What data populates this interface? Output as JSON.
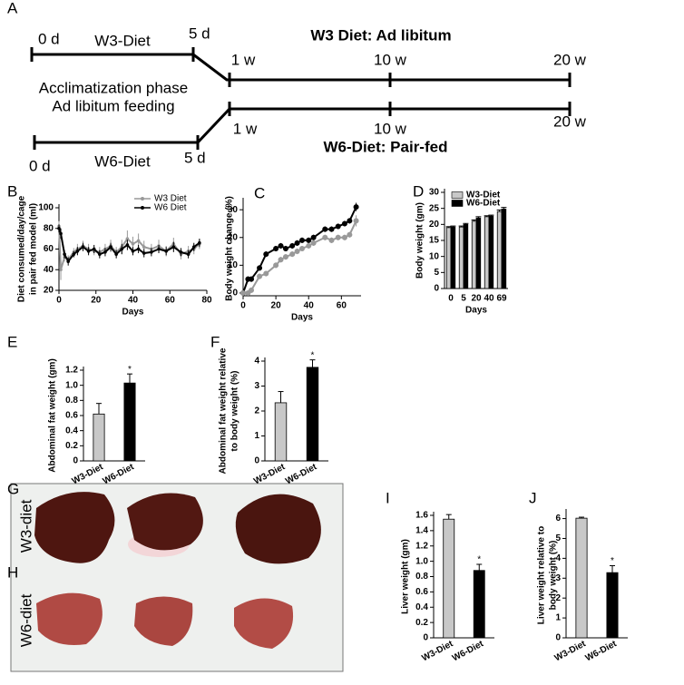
{
  "timeline": {
    "label": "A",
    "w3_start": "0 d",
    "w3_diet": "W3-Diet",
    "w3_end": "5 d",
    "w3_title": "W3 Diet: Ad libitum",
    "w3_marks": [
      "1 w",
      "10 w",
      "20 w"
    ],
    "phase": [
      "Acclimatization phase",
      "Ad libitum feeding"
    ],
    "w6_marks": [
      "1 w",
      "10 w",
      "20 w"
    ],
    "w6_start": "0 d",
    "w6_diet": "W6-Diet",
    "w6_end": "5 d",
    "w6_title": "W6-Diet: Pair-fed"
  },
  "photo": {
    "labels": [
      "G",
      "H"
    ],
    "rows": [
      "W3-diet",
      "W6-diet"
    ]
  },
  "chart_data": [
    {
      "type": "line",
      "panel": "B",
      "xlabel": "Days",
      "ylabel": [
        "Diet consumed/day/cage",
        "in pair fed model (ml)"
      ],
      "x": [
        0,
        1,
        3,
        5,
        8,
        10,
        13,
        16,
        19,
        22,
        25,
        28,
        31,
        34,
        37,
        40,
        43,
        46,
        50,
        54,
        58,
        62,
        66,
        70,
        73,
        76
      ],
      "xlim": [
        0,
        80
      ],
      "xticks": [
        0,
        20,
        40,
        60,
        80
      ],
      "ylim": [
        20,
        100
      ],
      "yticks": [
        20,
        40,
        60,
        80,
        100
      ],
      "legend": "upper right",
      "series": [
        {
          "name": "W3 Diet",
          "color": "#999999",
          "values": [
            82,
            40,
            52,
            50,
            57,
            60,
            63,
            60,
            58,
            57,
            60,
            63,
            57,
            62,
            70,
            65,
            68,
            62,
            60,
            63,
            58,
            65,
            55,
            58,
            60,
            65
          ],
          "errors": [
            5,
            10,
            4,
            4,
            4,
            5,
            5,
            5,
            4,
            5,
            5,
            6,
            5,
            7,
            8,
            7,
            7,
            6,
            5,
            6,
            5,
            6,
            5,
            5,
            5,
            5
          ]
        },
        {
          "name": "W6 Diet",
          "color": "#000000",
          "values": [
            80,
            75,
            55,
            48,
            55,
            58,
            62,
            58,
            60,
            55,
            57,
            62,
            55,
            60,
            64,
            58,
            60,
            56,
            57,
            60,
            58,
            62,
            57,
            55,
            62,
            66
          ],
          "errors": [
            4,
            5,
            4,
            4,
            3,
            4,
            4,
            4,
            4,
            4,
            4,
            4,
            4,
            5,
            5,
            4,
            4,
            4,
            4,
            4,
            4,
            5,
            4,
            4,
            4,
            4
          ]
        }
      ]
    },
    {
      "type": "line",
      "panel": "C",
      "xlabel": "Days",
      "ylabel": "Body weight change (%)",
      "x": [
        0,
        3,
        5,
        10,
        14,
        20,
        23,
        26,
        30,
        33,
        36,
        40,
        43,
        50,
        54,
        58,
        62,
        65,
        69
      ],
      "xlim": [
        0,
        72
      ],
      "xticks": [
        0,
        20,
        40,
        60
      ],
      "ylim": [
        -1,
        33
      ],
      "yticks": [
        0,
        10,
        20,
        30
      ],
      "series": [
        {
          "color": "#000000",
          "values": [
            0,
            5,
            5,
            9,
            14,
            16,
            17,
            16,
            17,
            18,
            19,
            19,
            20,
            23,
            23,
            24,
            25,
            26,
            31
          ],
          "errors": [
            0.5,
            1,
            1,
            1,
            1,
            1,
            1,
            1,
            1,
            1,
            1,
            1,
            1,
            1,
            1,
            1,
            1,
            1,
            1.5
          ]
        },
        {
          "color": "#999999",
          "values": [
            0,
            0,
            1,
            6,
            7,
            10,
            12,
            13,
            14,
            15,
            16,
            17,
            18,
            20,
            19,
            20,
            20,
            21,
            26
          ],
          "errors": [
            0.5,
            1,
            1,
            1,
            1,
            1,
            1,
            1,
            1,
            1,
            1,
            1,
            1,
            1,
            1,
            1,
            1,
            1,
            2
          ]
        }
      ]
    },
    {
      "type": "bar",
      "panel": "D",
      "xlabel": "Days",
      "ylabel": "Body weight (gm)",
      "categories": [
        "0",
        "5",
        "20",
        "40",
        "69"
      ],
      "ylim": [
        0,
        30
      ],
      "yticks": [
        0,
        5,
        10,
        15,
        20,
        25,
        30
      ],
      "legend": "upper left",
      "series": [
        {
          "name": "W3-Diet",
          "color": "#c8c8c8",
          "values": [
            19,
            19.2,
            21,
            22.4,
            24
          ],
          "errors": [
            0.3,
            0.3,
            0.4,
            0.3,
            0.5
          ]
        },
        {
          "name": "W6-Diet",
          "color": "#000000",
          "values": [
            19.2,
            20,
            22,
            22.6,
            24.8
          ],
          "errors": [
            0.3,
            0.3,
            0.4,
            0.3,
            0.5
          ]
        }
      ]
    },
    {
      "type": "bar",
      "panel": "E",
      "ylabel": "Abdominal fat weight (gm)",
      "categories": [
        "W3-Diet",
        "W6-Diet"
      ],
      "values": [
        0.62,
        1.03
      ],
      "errors": [
        0.14,
        0.12
      ],
      "colors": [
        "#c8c8c8",
        "#000000"
      ],
      "annotation": "*",
      "ylim": [
        0,
        1.2
      ],
      "yticks": [
        0,
        0.2,
        0.4,
        0.6,
        0.8,
        {
          "value": 1,
          "label": "1.0"
        },
        1.2
      ]
    },
    {
      "type": "bar",
      "panel": "F",
      "ylabel": [
        "Abdominal fat weight relative",
        "to body weight (%)"
      ],
      "categories": [
        "W3-Diet",
        "W6-Diet"
      ],
      "values": [
        2.33,
        3.75
      ],
      "errors": [
        0.45,
        0.3
      ],
      "colors": [
        "#c8c8c8",
        "#000000"
      ],
      "annotation": "*",
      "ylim": [
        0,
        4
      ],
      "yticks": [
        0,
        1,
        2,
        3,
        4
      ]
    },
    {
      "type": "bar",
      "panel": "I",
      "ylabel": "Liver weight (gm)",
      "categories": [
        "W3-Diet",
        "W6-Diet"
      ],
      "values": [
        1.55,
        0.88
      ],
      "errors": [
        0.06,
        0.08
      ],
      "colors": [
        "#c8c8c8",
        "#000000"
      ],
      "annotation": "*",
      "ylim": [
        0,
        1.6
      ],
      "yticks": [
        0,
        0.2,
        0.4,
        0.6,
        0.8,
        {
          "value": 1,
          "label": "1.0"
        },
        1.2,
        1.4,
        1.6
      ]
    },
    {
      "type": "bar",
      "panel": "J",
      "ylabel": [
        "Liver weight relative to",
        "body weight (%)"
      ],
      "categories": [
        "W3-Diet",
        "W6-Diet"
      ],
      "values": [
        6.02,
        3.28
      ],
      "errors": [
        0.05,
        0.35
      ],
      "colors": [
        "#c8c8c8",
        "#000000"
      ],
      "annotation": "*",
      "ylim": [
        0,
        6.3
      ],
      "yticks": [
        0,
        1,
        2,
        3,
        4,
        5,
        6
      ]
    }
  ]
}
